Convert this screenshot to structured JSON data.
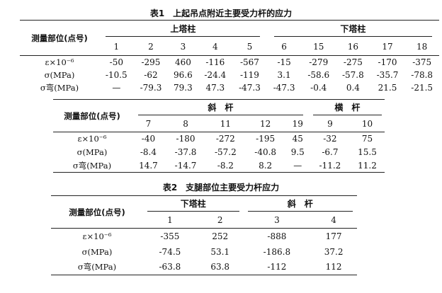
{
  "table1": {
    "title": "表1　上起吊点附近主要受力杆的应力",
    "row_header": "测量部位(点号)",
    "row_labels": [
      "ε×10⁻⁶",
      "σ(MPa)",
      "σ弯(MPa)"
    ],
    "part1": {
      "groups": [
        "上塔柱",
        "下塔柱"
      ],
      "points": [
        "1",
        "2",
        "3",
        "4",
        "5",
        "6",
        "15",
        "16",
        "17",
        "18"
      ],
      "rows": [
        [
          "-50",
          "-295",
          "460",
          "-116",
          "-567",
          "-15",
          "-279",
          "-275",
          "-170",
          "-375"
        ],
        [
          "-10.5",
          "-62",
          "96.6",
          "-24.4",
          "-119",
          "3.1",
          "-58.6",
          "-57.8",
          "-35.7",
          "-78.8"
        ],
        [
          "—",
          "-79.3",
          "79.3",
          "47.3",
          "-47.3",
          "-47.3",
          "-0.4",
          "0.4",
          "21.5",
          "-21.5"
        ]
      ]
    },
    "part2": {
      "groups": [
        "斜　杆",
        "横　杆"
      ],
      "points": [
        "7",
        "8",
        "11",
        "12",
        "19",
        "9",
        "10"
      ],
      "rows": [
        [
          "-40",
          "-180",
          "-272",
          "-195",
          "45",
          "-32",
          "75"
        ],
        [
          "-8.4",
          "-37.8",
          "-57.2",
          "-40.8",
          "9.5",
          "-6.7",
          "15.5"
        ],
        [
          "14.7",
          "-14.7",
          "-8.2",
          "8.2",
          "—",
          "-11.2",
          "11.2"
        ]
      ]
    }
  },
  "table2": {
    "title": "表2　支腿部位主要受力杆应力",
    "row_header": "测量部位(点号)",
    "row_labels": [
      "ε×10⁻⁶",
      "σ(MPa)",
      "σ弯(MPa)"
    ],
    "groups": [
      "下塔柱",
      "斜　杆"
    ],
    "points": [
      "1",
      "2",
      "3",
      "4"
    ],
    "rows": [
      [
        "-355",
        "252",
        "-888",
        "177"
      ],
      [
        "-74.5",
        "53.1",
        "-186.8",
        "37.2"
      ],
      [
        "-63.8",
        "63.8",
        "-112",
        "112"
      ]
    ]
  }
}
